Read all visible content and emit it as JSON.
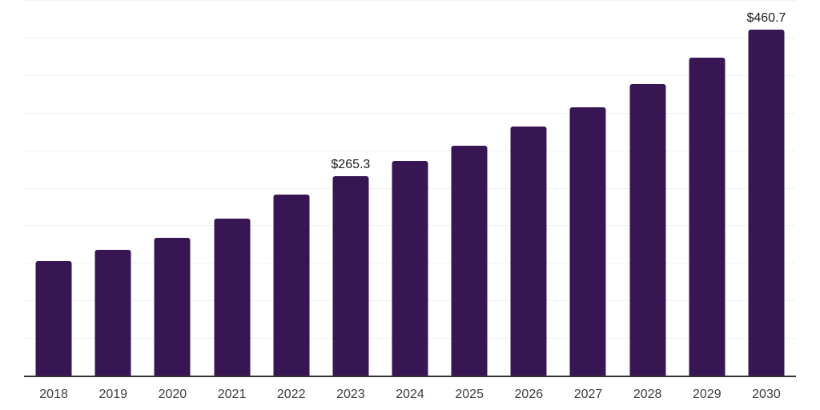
{
  "chart_data": {
    "type": "bar",
    "title": "",
    "categories": [
      "2018",
      "2019",
      "2020",
      "2021",
      "2022",
      "2023",
      "2024",
      "2025",
      "2026",
      "2027",
      "2028",
      "2029",
      "2030"
    ],
    "values": [
      152.5,
      167.2,
      183.2,
      209.2,
      241.0,
      265.3,
      285.6,
      306.0,
      332.0,
      356.9,
      388.4,
      423.7,
      460.7
    ],
    "bar_labels": [
      null,
      null,
      null,
      null,
      null,
      "$265.3",
      null,
      null,
      null,
      null,
      null,
      null,
      "$460.7"
    ],
    "xlabel": "",
    "ylabel": "",
    "ylim": [
      0,
      500
    ],
    "y_gridline_step": 50,
    "grid": "horizontal-only",
    "y_axis_tick_labels_visible": false,
    "legend": "none",
    "colors": {
      "bar": "#371653",
      "gridline": "#f1f1f4",
      "axis_line": "#333333",
      "axis_label": "#3d3d3d",
      "value_label": "#1a1a1a",
      "background": "#ffffff"
    }
  }
}
